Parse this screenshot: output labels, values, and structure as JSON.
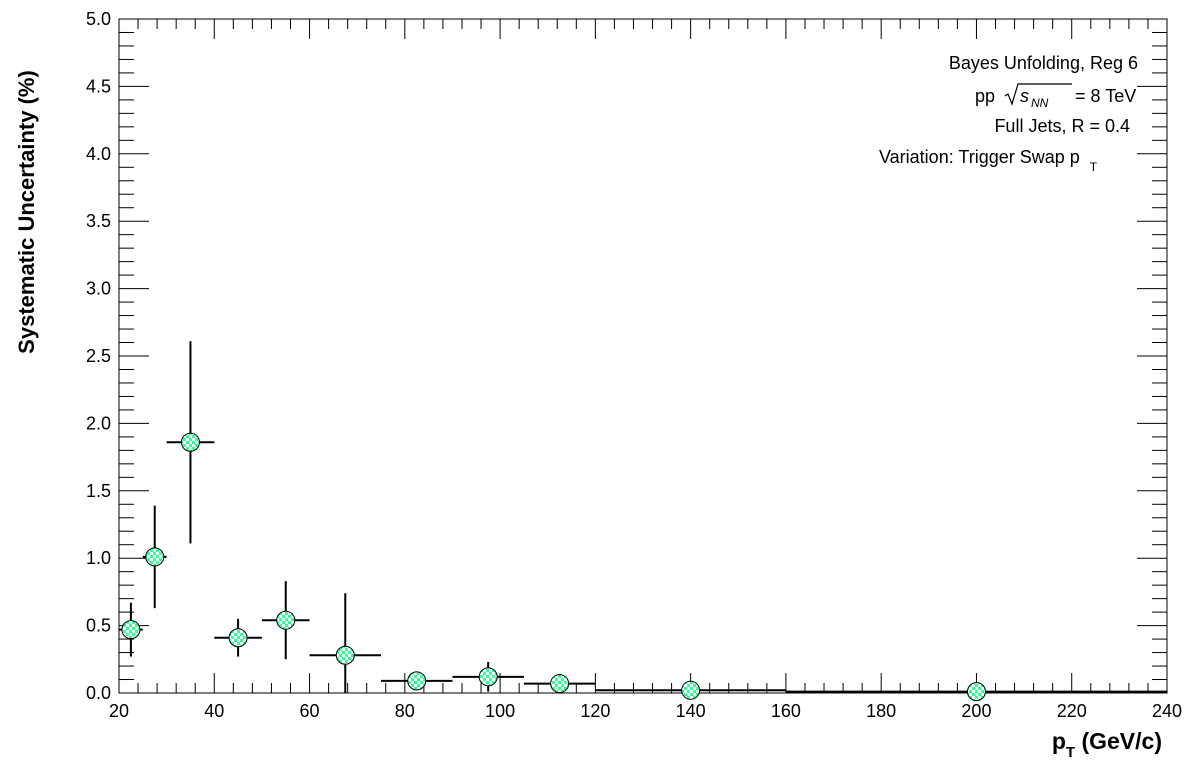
{
  "chart_data": {
    "type": "scatter",
    "xlabel_main": "p",
    "xlabel_sub": "T",
    "xlabel_rest": " (GeV/c)",
    "ylabel": "Systematic Uncertainty (%)",
    "xlim": [
      20,
      240
    ],
    "ylim": [
      0,
      5.0
    ],
    "x_ticks": [
      20,
      40,
      60,
      80,
      100,
      120,
      140,
      160,
      180,
      200,
      220,
      240
    ],
    "y_ticks": [
      "0.0",
      "0.5",
      "1.0",
      "1.5",
      "2.0",
      "2.5",
      "3.0",
      "3.5",
      "4.0",
      "4.5",
      "5.0"
    ],
    "annotations": {
      "line1": "Bayes Unfolding, Reg 6",
      "line2_prefix": "pp",
      "line2_s": "s",
      "line2_sub": "NN",
      "line2_suffix": "= 8 TeV",
      "line3": "Full Jets, R = 0.4",
      "line4_main": "Variation: Trigger Swap p",
      "line4_sub": "T"
    },
    "marker_color": "#33ff99",
    "series": [
      {
        "points": [
          {
            "x": 22.5,
            "xlo": 20,
            "xhi": 25,
            "y": 0.47,
            "err": 0.2
          },
          {
            "x": 27.5,
            "xlo": 25,
            "xhi": 30,
            "y": 1.01,
            "err": 0.38
          },
          {
            "x": 35,
            "xlo": 30,
            "xhi": 40,
            "y": 1.86,
            "err": 0.75
          },
          {
            "x": 45,
            "xlo": 40,
            "xhi": 50,
            "y": 0.41,
            "err": 0.14
          },
          {
            "x": 55,
            "xlo": 50,
            "xhi": 60,
            "y": 0.54,
            "err": 0.29
          },
          {
            "x": 67.5,
            "xlo": 60,
            "xhi": 75,
            "y": 0.28,
            "err": 0.46
          },
          {
            "x": 82.5,
            "xlo": 75,
            "xhi": 90,
            "y": 0.09,
            "err": 0.0
          },
          {
            "x": 97.5,
            "xlo": 90,
            "xhi": 105,
            "y": 0.12,
            "err": 0.11
          },
          {
            "x": 112.5,
            "xlo": 105,
            "xhi": 120,
            "y": 0.07,
            "err": 0.07
          },
          {
            "x": 140,
            "xlo": 120,
            "xhi": 160,
            "y": 0.02,
            "err": 0.0
          },
          {
            "x": 200,
            "xlo": 160,
            "xhi": 240,
            "y": 0.01,
            "err": 0.0
          }
        ]
      }
    ]
  }
}
